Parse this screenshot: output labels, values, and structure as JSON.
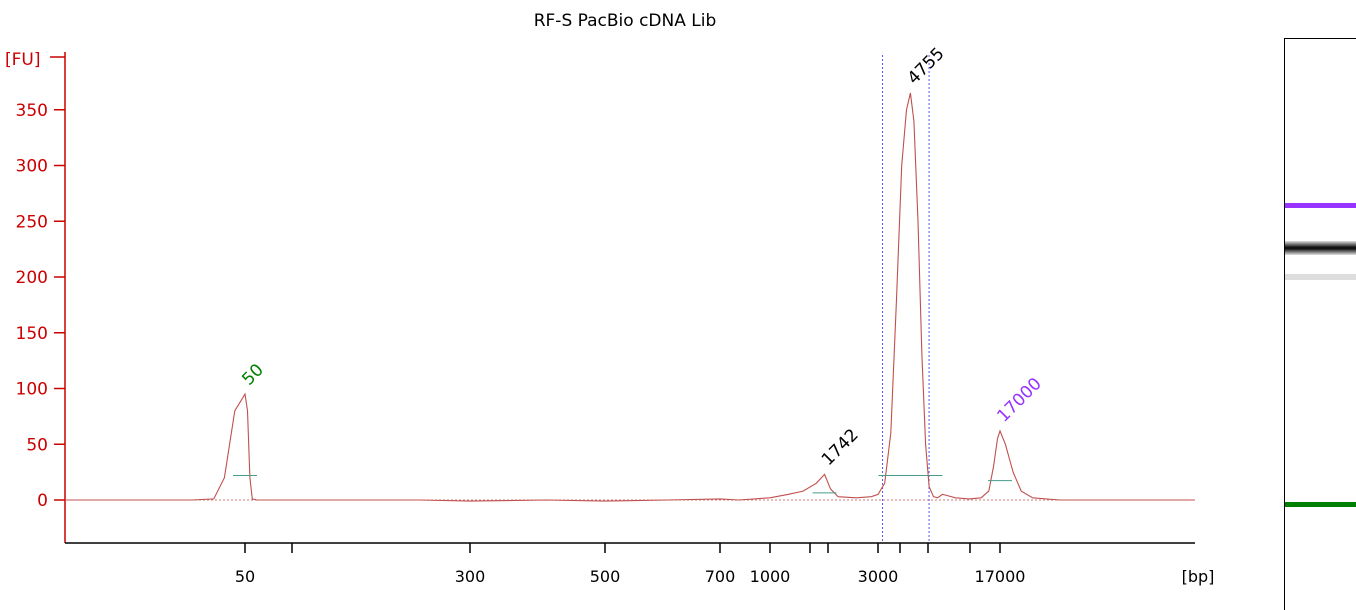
{
  "chart_data": {
    "type": "line",
    "title": "RF-S PacBio cDNA Lib",
    "ylabel": "[FU]",
    "xlabel": "[bp]",
    "ylim": [
      -40,
      390
    ],
    "y_ticks": [
      0,
      50,
      100,
      150,
      200,
      250,
      300,
      350
    ],
    "x_tick_labels": [
      "50",
      "300",
      "500",
      "700",
      "1000",
      "3000",
      "17000"
    ],
    "x_scale": "log",
    "peaks": [
      {
        "label": "50",
        "bp": 50,
        "fu": 95,
        "color": "#008000"
      },
      {
        "label": "1742",
        "bp": 1742,
        "fu": 23,
        "color": "#000000"
      },
      {
        "label": "4755",
        "bp": 4755,
        "fu": 365,
        "color": "#000000"
      },
      {
        "label": "17000",
        "bp": 17000,
        "fu": 62,
        "color": "#9933ff"
      }
    ],
    "region_bounds_bp": [
      3200,
      6200
    ],
    "series": [
      {
        "color": "#c0504d",
        "points": [
          [
            35,
            0
          ],
          [
            45,
            0
          ],
          [
            47,
            1
          ],
          [
            48,
            20
          ],
          [
            49,
            80
          ],
          [
            50,
            95
          ],
          [
            51,
            80
          ],
          [
            52,
            20
          ],
          [
            53,
            1
          ],
          [
            55,
            0
          ],
          [
            100,
            0
          ],
          [
            200,
            0
          ],
          [
            300,
            -1
          ],
          [
            400,
            0
          ],
          [
            500,
            -1
          ],
          [
            600,
            0
          ],
          [
            700,
            1
          ],
          [
            800,
            0
          ],
          [
            1000,
            2
          ],
          [
            1200,
            5
          ],
          [
            1400,
            8
          ],
          [
            1600,
            15
          ],
          [
            1742,
            23
          ],
          [
            1850,
            10
          ],
          [
            2000,
            3
          ],
          [
            2400,
            2
          ],
          [
            2800,
            3
          ],
          [
            3000,
            5
          ],
          [
            3300,
            15
          ],
          [
            3600,
            60
          ],
          [
            3900,
            180
          ],
          [
            4200,
            300
          ],
          [
            4500,
            350
          ],
          [
            4755,
            365
          ],
          [
            5000,
            340
          ],
          [
            5300,
            250
          ],
          [
            5600,
            130
          ],
          [
            5900,
            50
          ],
          [
            6200,
            12
          ],
          [
            6600,
            3
          ],
          [
            7000,
            2
          ],
          [
            7500,
            5
          ],
          [
            8000,
            4
          ],
          [
            9000,
            2
          ],
          [
            11000,
            1
          ],
          [
            13000,
            2
          ],
          [
            14500,
            8
          ],
          [
            15500,
            30
          ],
          [
            16400,
            55
          ],
          [
            17000,
            62
          ],
          [
            17600,
            50
          ],
          [
            18500,
            25
          ],
          [
            19500,
            8
          ],
          [
            21000,
            2
          ],
          [
            25000,
            0
          ],
          [
            35000,
            0
          ],
          [
            50000,
            0
          ],
          [
            60000,
            0
          ]
        ]
      }
    ]
  },
  "gel": {
    "bands": [
      {
        "top": 164,
        "height": 5,
        "color": "#9933ff"
      },
      {
        "top": 202,
        "height": 14,
        "color": "#111111"
      },
      {
        "top": 235,
        "height": 6,
        "color": "#dddddd"
      },
      {
        "top": 463,
        "height": 5,
        "color": "#008000"
      }
    ]
  }
}
